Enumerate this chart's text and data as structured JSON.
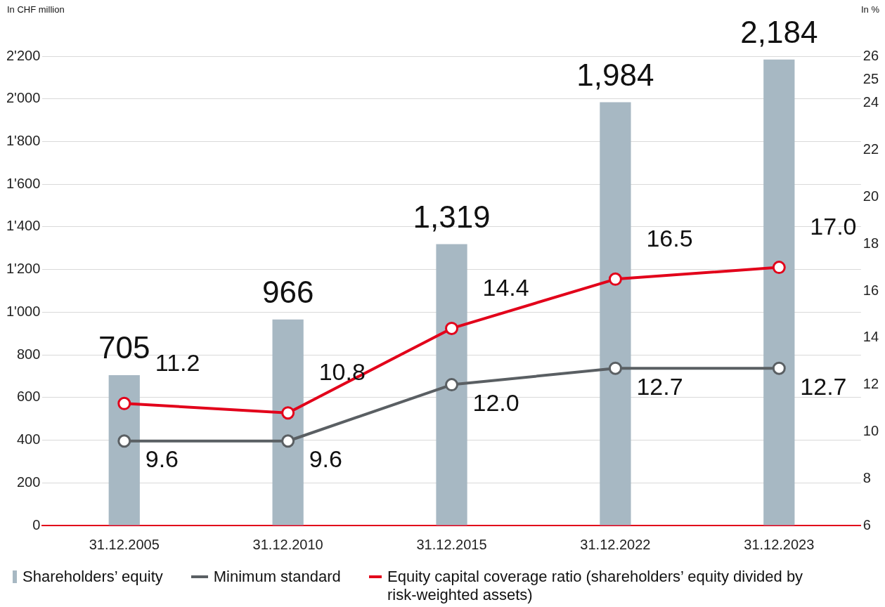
{
  "chart_data": {
    "type": "bar",
    "ylabel": "In CHF million",
    "y2label": "In %",
    "categories": [
      "31.12.2005",
      "31.12.2010",
      "31.12.2015",
      "31.12.2022",
      "31.12.2023"
    ],
    "series": [
      {
        "name": "Shareholders’ equity",
        "color": "#a7b8c3",
        "values": [
          705,
          966,
          1319,
          1984,
          2184
        ],
        "value_labels": [
          "705",
          "966",
          "1,319",
          "1,984",
          "2,184"
        ]
      },
      {
        "name": "Minimum standard",
        "type": "line",
        "axis": "y2",
        "color": "#5a5f63",
        "values": [
          9.6,
          9.6,
          12.0,
          12.7,
          12.7
        ],
        "value_labels": [
          "9.6",
          "9.6",
          "12.0",
          "12.7",
          "12.7"
        ]
      },
      {
        "name": "Equity capital coverage ratio (shareholders’ equity divided by risk-weighted assets)",
        "type": "line",
        "axis": "y2",
        "color": "#e2001a",
        "values": [
          11.2,
          10.8,
          14.4,
          16.5,
          17.0
        ],
        "value_labels": [
          "11.2",
          "10.8",
          "14.4",
          "16.5",
          "17.0"
        ]
      }
    ],
    "ylim": [
      0,
      2200
    ],
    "yticks": [
      0,
      {
        "value": 200,
        "label": "200"
      },
      {
        "value": 400,
        "label": "400"
      },
      {
        "value": 600,
        "label": "600"
      },
      {
        "value": 800,
        "label": "800"
      },
      {
        "value": 1000,
        "label": "1'000"
      },
      {
        "value": 1200,
        "label": "1'200"
      },
      {
        "value": 1400,
        "label": "1'400"
      },
      {
        "value": 1600,
        "label": "1'600"
      },
      {
        "value": 1800,
        "label": "1'800"
      },
      {
        "value": 2000,
        "label": "2'000"
      },
      {
        "value": 2200,
        "label": "2'200"
      }
    ],
    "y2lim": [
      6,
      26
    ],
    "y2ticks": [
      6,
      8,
      10,
      12,
      14,
      16,
      18,
      20,
      22,
      24,
      25,
      26
    ],
    "grid": "y",
    "marker": "circle",
    "line_style": "solid",
    "legend": "bottom left"
  }
}
